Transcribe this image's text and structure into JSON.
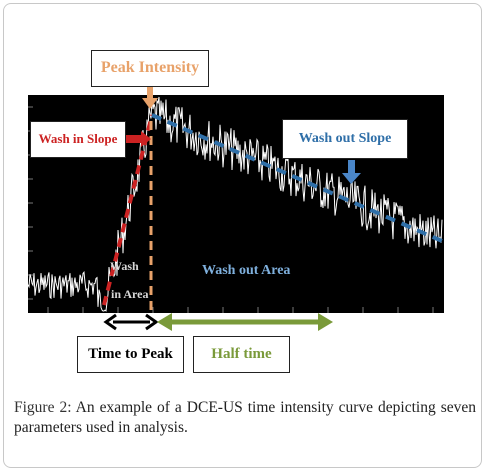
{
  "figure": {
    "labels": {
      "peak_intensity": "Peak Intensity",
      "wash_in_slope": "Wash in Slope",
      "wash_out_slope": "Wash out Slope",
      "wash": "Wash",
      "in_area": "in Area",
      "wash_out_area": "Wash out Area",
      "time_to_peak": "Time to Peak",
      "half_time": "Half time"
    },
    "colors": {
      "peak": "#e8a26a",
      "wash_in": "#cc2222",
      "wash_out": "#2f6fa8",
      "half_time": "#7a9a3a",
      "curve": "#ffffff",
      "background": "#000000"
    }
  },
  "caption": {
    "label": "Figure 2:",
    "text": "An example of a DCE-US time intensity curve depicting seven parameters used in analysis."
  }
}
